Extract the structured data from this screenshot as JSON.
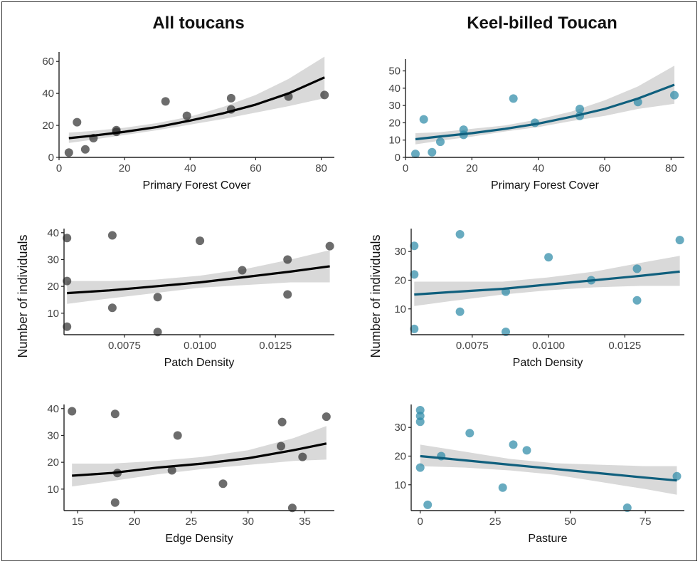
{
  "figure": {
    "col_titles": [
      "All toucans",
      "Keel-billed Toucan"
    ],
    "ylabel": "Number of individuals"
  },
  "colors": {
    "all": "#333333",
    "keel": "#2e8ba8",
    "keel_line": "#0f5f7d",
    "all_line": "#000000",
    "ci": "#d9d9d9"
  },
  "chart_data": [
    {
      "type": "scatter",
      "title": "All toucans",
      "xlabel": "Primary Forest Cover",
      "ylabel": "",
      "xlim": [
        0,
        84
      ],
      "ylim": [
        0,
        65
      ],
      "xticks": [
        0,
        20,
        40,
        60,
        80
      ],
      "xtick_labels": [
        "0",
        "20",
        "40",
        "60",
        "80"
      ],
      "yticks": [
        0,
        20,
        40,
        60
      ],
      "ytick_labels": [
        "0",
        "20",
        "40",
        "60"
      ],
      "grid": false,
      "series": [
        {
          "color": "#333333",
          "x": [
            3,
            5.5,
            8,
            10.5,
            17.5,
            17.5,
            32.5,
            39,
            52.5,
            52.5,
            70,
            81
          ],
          "y": [
            3,
            22,
            5,
            12,
            17,
            16,
            35,
            26,
            37,
            30,
            38,
            39
          ]
        }
      ],
      "fit": {
        "x": [
          3,
          10,
          20,
          30,
          40,
          50,
          60,
          70,
          81
        ],
        "y": [
          12,
          13.5,
          16,
          19,
          23,
          27.5,
          33,
          40,
          50
        ],
        "ci_low": [
          9,
          11,
          14,
          17,
          20.5,
          24,
          28,
          32,
          37
        ],
        "ci_high": [
          15.5,
          16.5,
          18.5,
          21.5,
          25.5,
          31.5,
          39,
          49,
          63
        ]
      }
    },
    {
      "type": "scatter",
      "title": "Keel-billed Toucan",
      "xlabel": "Primary Forest Cover",
      "ylabel": "",
      "xlim": [
        0,
        84
      ],
      "ylim": [
        0,
        56
      ],
      "xticks": [
        0,
        20,
        40,
        60,
        80
      ],
      "xtick_labels": [
        "0",
        "20",
        "40",
        "60",
        "80"
      ],
      "yticks": [
        0,
        10,
        20,
        30,
        40,
        50
      ],
      "ytick_labels": [
        "0",
        "10",
        "20",
        "30",
        "40",
        "50"
      ],
      "grid": false,
      "series": [
        {
          "color": "#2e8ba8",
          "x": [
            3,
            5.5,
            8,
            10.5,
            17.5,
            17.5,
            32.5,
            39,
            52.5,
            52.5,
            70,
            81
          ],
          "y": [
            2,
            22,
            3,
            9,
            16,
            13,
            34,
            20,
            28,
            24,
            32,
            36
          ]
        }
      ],
      "fit": {
        "x": [
          3,
          10,
          20,
          30,
          40,
          50,
          60,
          70,
          81
        ],
        "y": [
          10.5,
          12,
          14,
          16.5,
          19.5,
          23.5,
          28,
          34,
          42
        ],
        "ci_low": [
          7.5,
          9.5,
          12,
          15,
          17.5,
          21,
          24,
          28,
          31
        ],
        "ci_high": [
          14,
          14.5,
          16.5,
          18.5,
          22,
          26.5,
          33,
          41,
          53
        ]
      }
    },
    {
      "type": "scatter",
      "title": "",
      "xlabel": "Patch Density",
      "ylabel": "",
      "xlim": [
        0.0055,
        0.01445
      ],
      "ylim": [
        2,
        41
      ],
      "xticks": [
        0.0075,
        0.01,
        0.0125
      ],
      "xtick_labels": [
        "0.0075",
        "0.0100",
        "0.0125"
      ],
      "yticks": [
        10,
        20,
        30,
        40
      ],
      "ytick_labels": [
        "10",
        "20",
        "30",
        "40"
      ],
      "grid": false,
      "series": [
        {
          "color": "#333333",
          "x": [
            0.0056,
            0.0056,
            0.0056,
            0.0071,
            0.0071,
            0.0086,
            0.0086,
            0.01,
            0.0114,
            0.0129,
            0.0129,
            0.0143
          ],
          "y": [
            38,
            22,
            5,
            39,
            12,
            16,
            3,
            37,
            26,
            30,
            17,
            35
          ]
        }
      ],
      "fit": {
        "x": [
          0.0056,
          0.007,
          0.0085,
          0.01,
          0.0115,
          0.013,
          0.0143
        ],
        "y": [
          17.5,
          18.5,
          20,
          21.5,
          23.5,
          25.5,
          27.5
        ],
        "ci_low": [
          13.5,
          15.5,
          17.5,
          19.5,
          20.5,
          21.5,
          21.5
        ],
        "ci_high": [
          22,
          22,
          22.5,
          24,
          26.5,
          30,
          33.5
        ]
      }
    },
    {
      "type": "scatter",
      "title": "",
      "xlabel": "Patch Density",
      "ylabel": "",
      "xlim": [
        0.0055,
        0.01445
      ],
      "ylim": [
        1,
        37.5
      ],
      "xticks": [
        0.0075,
        0.01,
        0.0125
      ],
      "xtick_labels": [
        "0.0075",
        "0.0100",
        "0.0125"
      ],
      "yticks": [
        10,
        20,
        30
      ],
      "ytick_labels": [
        "10",
        "20",
        "30"
      ],
      "grid": false,
      "series": [
        {
          "color": "#2e8ba8",
          "x": [
            0.0056,
            0.0056,
            0.0056,
            0.0071,
            0.0071,
            0.0086,
            0.0086,
            0.01,
            0.0114,
            0.0129,
            0.0129,
            0.0143
          ],
          "y": [
            32,
            22,
            3,
            36,
            9,
            16,
            2,
            28,
            20,
            24,
            13,
            34
          ]
        }
      ],
      "fit": {
        "x": [
          0.0056,
          0.007,
          0.0085,
          0.01,
          0.0115,
          0.013,
          0.0143
        ],
        "y": [
          15,
          16,
          17,
          18.5,
          20,
          21.5,
          23
        ],
        "ci_low": [
          11,
          13,
          15,
          16.5,
          17.5,
          18,
          18
        ],
        "ci_high": [
          19.5,
          19.5,
          19.5,
          21,
          23,
          26,
          28.5
        ]
      }
    },
    {
      "type": "scatter",
      "title": "",
      "xlabel": "Edge Density",
      "ylabel": "",
      "xlim": [
        13.8,
        37.6
      ],
      "ylim": [
        2,
        41
      ],
      "xticks": [
        15,
        20,
        25,
        30,
        35
      ],
      "xtick_labels": [
        "15",
        "20",
        "25",
        "30",
        "35"
      ],
      "yticks": [
        10,
        20,
        30,
        40
      ],
      "ytick_labels": [
        "10",
        "20",
        "30",
        "40"
      ],
      "grid": false,
      "series": [
        {
          "color": "#333333",
          "x": [
            14.5,
            18.3,
            18.5,
            18.3,
            23.3,
            23.8,
            27.8,
            33,
            32.9,
            33.9,
            34.8,
            36.9
          ],
          "y": [
            39,
            38,
            16,
            5,
            17,
            30,
            12,
            35,
            26,
            3,
            22,
            37
          ]
        }
      ],
      "fit": {
        "x": [
          14.5,
          18,
          22,
          26,
          30,
          34,
          36.9
        ],
        "y": [
          15,
          16,
          18,
          19.5,
          21.5,
          24.5,
          27
        ],
        "ci_low": [
          11,
          13,
          15.5,
          17.5,
          19,
          20.5,
          21
        ],
        "ci_high": [
          19.5,
          19.5,
          20.5,
          22,
          24.5,
          29,
          33.5
        ]
      }
    },
    {
      "type": "scatter",
      "title": "",
      "xlabel": "Pasture",
      "ylabel": "",
      "xlim": [
        -3,
        88
      ],
      "ylim": [
        1,
        37.5
      ],
      "xticks": [
        0,
        25,
        50,
        75
      ],
      "xtick_labels": [
        "0",
        "25",
        "50",
        "75"
      ],
      "yticks": [
        10,
        20,
        30
      ],
      "ytick_labels": [
        "10",
        "20",
        "30"
      ],
      "grid": false,
      "series": [
        {
          "color": "#2e8ba8",
          "x": [
            0,
            0,
            0,
            0,
            2.5,
            7,
            16.5,
            27.5,
            31,
            35.5,
            69,
            85.5
          ],
          "y": [
            36,
            34,
            32,
            16,
            3,
            20,
            28,
            9,
            24,
            22,
            2,
            13
          ]
        }
      ],
      "fit": {
        "x": [
          0,
          15,
          30,
          45,
          60,
          75,
          85.5
        ],
        "y": [
          20,
          18.5,
          17,
          15.5,
          14,
          12.5,
          11.5
        ],
        "ci_low": [
          16.5,
          16,
          15,
          13.5,
          11,
          8.5,
          6.5
        ],
        "ci_high": [
          24,
          21.5,
          19,
          17.5,
          17,
          16.5,
          16.5
        ]
      }
    }
  ]
}
